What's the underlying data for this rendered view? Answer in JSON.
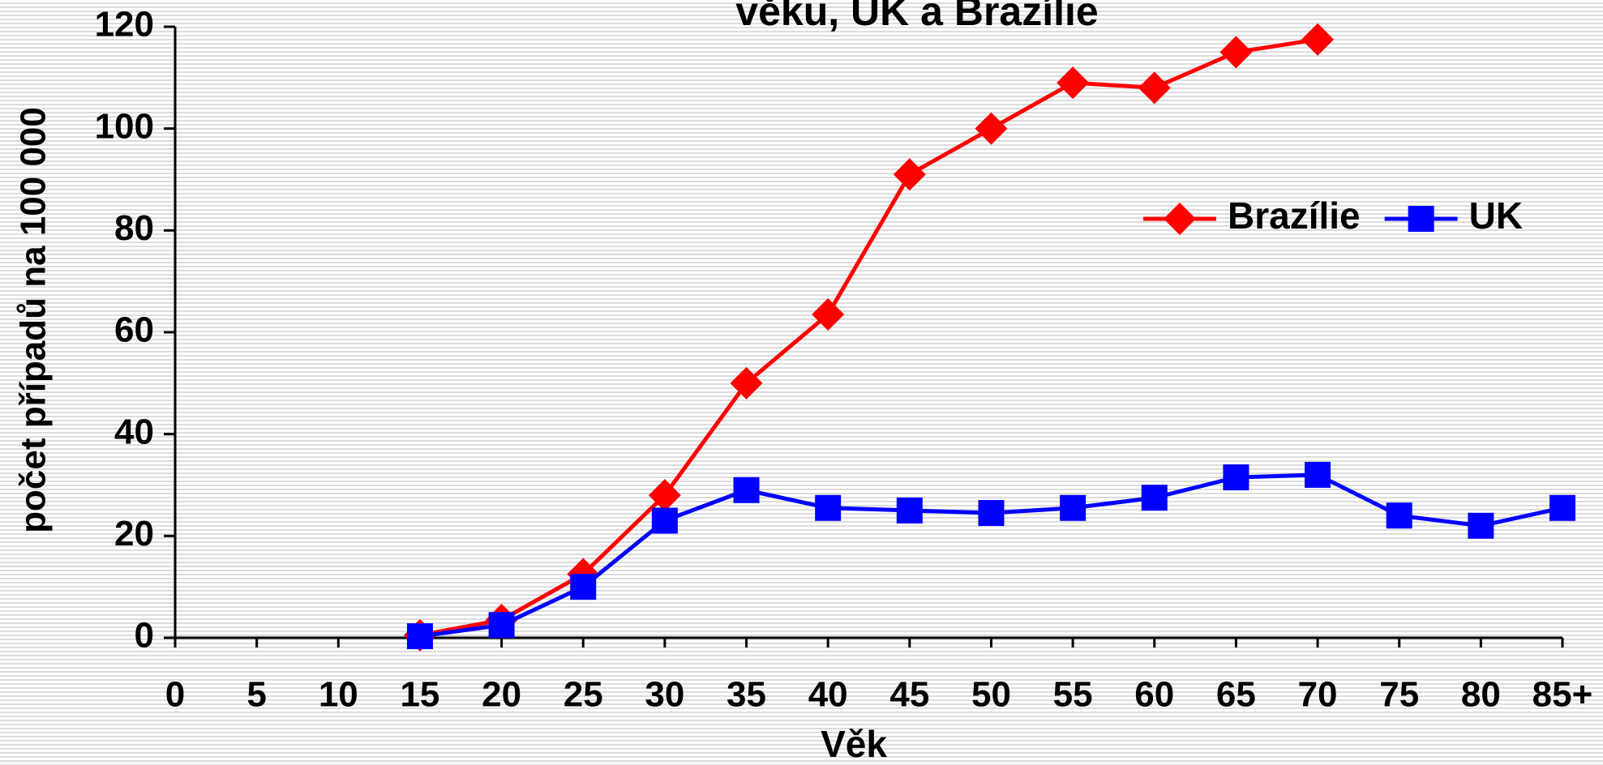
{
  "chart_data": {
    "type": "line",
    "title": "věku, UK a Brazílie",
    "x_label": "Věk",
    "y_label": "počet případů na 100 000",
    "categories": [
      "0",
      "5",
      "10",
      "15",
      "20",
      "25",
      "30",
      "35",
      "40",
      "45",
      "50",
      "55",
      "60",
      "65",
      "70",
      "75",
      "80",
      "85+"
    ],
    "series": [
      {
        "name": "Brazílie",
        "color": "#ff0000",
        "marker": "diamond",
        "values": [
          null,
          null,
          null,
          0.5,
          3.5,
          12.5,
          28,
          50,
          63.5,
          91,
          100,
          109,
          108,
          115,
          117.5,
          null,
          null,
          null
        ]
      },
      {
        "name": "UK",
        "color": "#0000ff",
        "marker": "square",
        "values": [
          null,
          null,
          null,
          0.3,
          2.5,
          10,
          23,
          29,
          25.5,
          25,
          24.5,
          25.5,
          27.5,
          31.5,
          32,
          24,
          22,
          25.5
        ]
      }
    ],
    "ylim": [
      0,
      120
    ],
    "yticks": [
      0,
      20,
      40,
      60,
      80,
      100,
      120
    ],
    "legend": "upper right"
  }
}
